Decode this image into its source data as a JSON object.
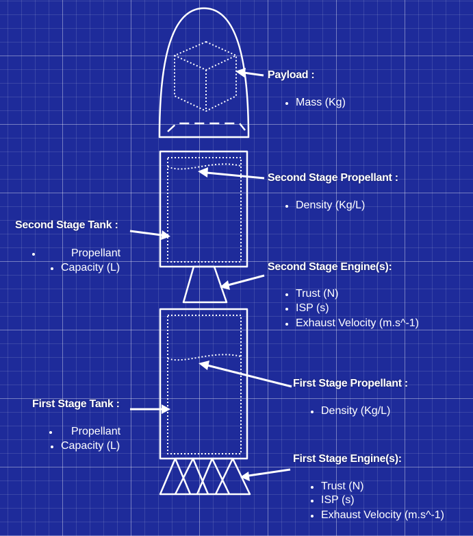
{
  "payload": {
    "heading": "Payload :",
    "items": [
      "Mass (Kg)"
    ]
  },
  "second_stage_propellant": {
    "heading": "Second Stage Propellant :",
    "items": [
      "Density (Kg/L)"
    ]
  },
  "second_stage_tank": {
    "heading": "Second Stage Tank :",
    "items": [
      "Propellant",
      "Capacity (L)"
    ]
  },
  "second_stage_engine": {
    "heading": "Second Stage Engine(s):",
    "items": [
      "Trust (N)",
      "ISP (s)",
      "Exhaust Velocity (m.s^-1)"
    ]
  },
  "first_stage_propellant": {
    "heading": "First Stage Propellant :",
    "items": [
      "Density (Kg/L)"
    ]
  },
  "first_stage_tank": {
    "heading": "First Stage Tank :",
    "items": [
      "Propellant",
      "Capacity (L)"
    ]
  },
  "first_stage_engine": {
    "heading": "First Stage Engine(s):",
    "items": [
      "Trust (N)",
      "ISP (s)",
      "Exhaust Velocity (m.s^-1)"
    ]
  }
}
